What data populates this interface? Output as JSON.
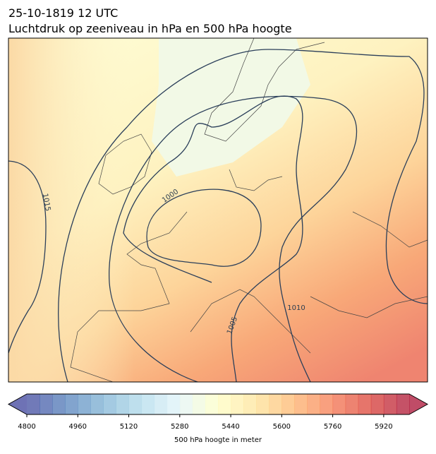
{
  "title": {
    "line1": "25-10-1819 12 UTC",
    "line2": "Luchtdruk op zeeniveau in hPa en 500 hPa hoogte"
  },
  "map": {
    "contour_labels": [
      "1015",
      "1000",
      "1010",
      "1005"
    ]
  },
  "colorbar": {
    "range": [
      4800,
      6000
    ],
    "step": 40,
    "ticks": [
      4800,
      4960,
      5120,
      5280,
      5440,
      5600,
      5760,
      5920
    ],
    "label": "500 hPa hoogte in meter"
  }
}
